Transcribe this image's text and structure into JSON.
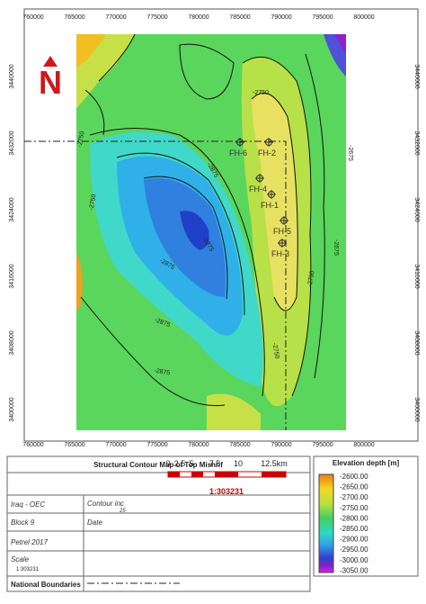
{
  "map": {
    "x_labels": [
      "760000",
      "765000",
      "770000",
      "775000",
      "780000",
      "785000",
      "790000",
      "795000",
      "800000"
    ],
    "y_labels": [
      "3440000",
      "3432000",
      "3424000",
      "3416000",
      "3408000",
      "3400000"
    ],
    "north": "N",
    "wells": [
      "FH-6",
      "FH-2",
      "FH-4",
      "FH-1",
      "FH-5",
      "FH-3"
    ],
    "contour_labels": [
      "-2750",
      "-2750",
      "-2875",
      "-2875",
      "-2875",
      "-2750",
      "-2675",
      "-2750",
      "-2875",
      "-2750",
      "-2875",
      "-2675"
    ]
  },
  "scale_bar": {
    "ticks": [
      "0",
      "2.5",
      "5",
      "7.5",
      "10",
      "12.5km"
    ],
    "ratio": "1:303231"
  },
  "legend": {
    "title": "Elevation depth [m]",
    "labels": [
      "-2600.00",
      "-2650.00",
      "-2700.00",
      "-2750.00",
      "-2800.00",
      "-2850.00",
      "-2900.00",
      "-2950.00",
      "-3000.00",
      "-3050.00"
    ]
  },
  "title_block": {
    "title": "Structural Contour Map of Top Mishrif",
    "company": "Iraq - OEC",
    "contour_label": "Contour inc",
    "contour_value": "25",
    "block": "Block 9",
    "date_label": "Date",
    "software": "Petrel 2017",
    "scale_label": "Scale",
    "scale_value": "1:303231",
    "boundary_label": "National Boundaries"
  }
}
